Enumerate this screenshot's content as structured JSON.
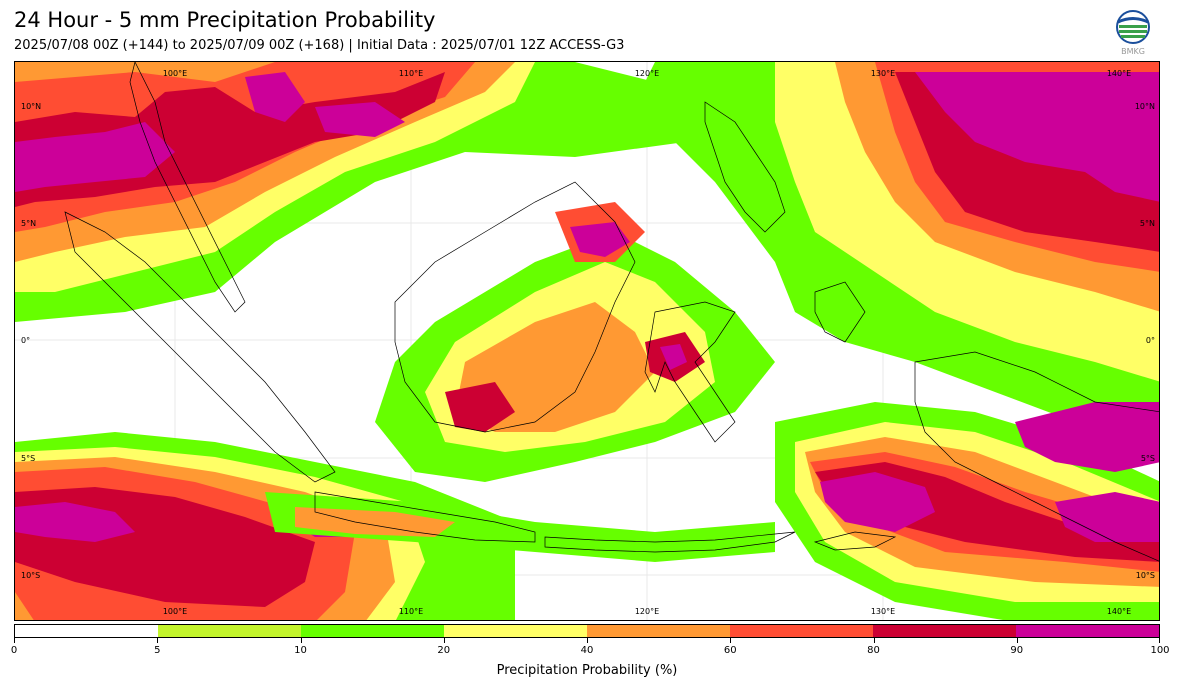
{
  "header": {
    "title": "24 Hour - 5 mm Precipitation Probability",
    "subtitle": "2025/07/08 00Z (+144) to 2025/07/09 00Z (+168) | Initial Data : 2025/07/01 12Z ACCESS-G3",
    "logo_text": "BMKG"
  },
  "map": {
    "lon_labels": [
      "100°E",
      "110°E",
      "120°E",
      "130°E",
      "140°E"
    ],
    "lat_labels": [
      "10°N",
      "5°N",
      "0°",
      "5°S",
      "10°S"
    ],
    "background": "#ffffff",
    "coastline_color": "#000000"
  },
  "colorbar": {
    "title": "Precipitation Probability (%)",
    "ticks": [
      "0",
      "5",
      "10",
      "20",
      "40",
      "60",
      "80",
      "90",
      "100"
    ],
    "colors": [
      "#ffffff",
      "#c3f52b",
      "#66ff00",
      "#ffff66",
      "#ff9933",
      "#ff4d33",
      "#cc0033",
      "#cc0099"
    ]
  }
}
